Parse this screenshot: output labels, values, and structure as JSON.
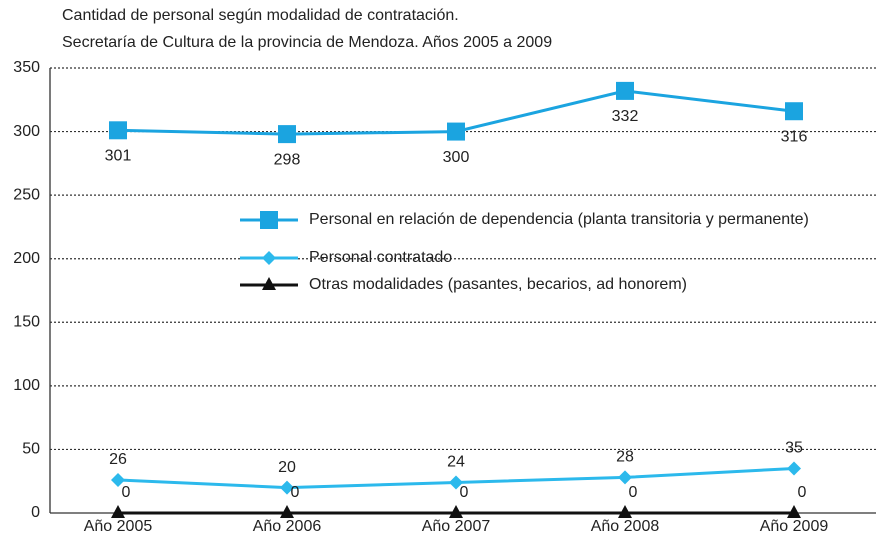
{
  "chart_data": {
    "type": "line",
    "title": "Cantidad de personal según modalidad de contratación.",
    "subtitle": "Secretaría de Cultura de la provincia de Mendoza. Años 2005 a 2009",
    "categories": [
      "Año 2005",
      "Año 2006",
      "Año 2007",
      "Año 2008",
      "Año 2009"
    ],
    "series": [
      {
        "name": "Personal en relación de dependencia (planta transitoria y permanente)",
        "color": "#1ba4e0",
        "marker": "square",
        "values": [
          301,
          298,
          300,
          332,
          316
        ]
      },
      {
        "name": "Personal contratado",
        "color": "#2cb9ec",
        "marker": "diamond",
        "values": [
          26,
          20,
          24,
          28,
          35
        ]
      },
      {
        "name": "Otras modalidades (pasantes, becarios, ad honorem)",
        "color": "#111111",
        "marker": "triangle",
        "values": [
          0,
          0,
          0,
          0,
          0
        ]
      }
    ],
    "ylim": [
      0,
      350
    ],
    "yticks": [
      0,
      50,
      100,
      150,
      200,
      250,
      300,
      350
    ],
    "grid": true
  }
}
